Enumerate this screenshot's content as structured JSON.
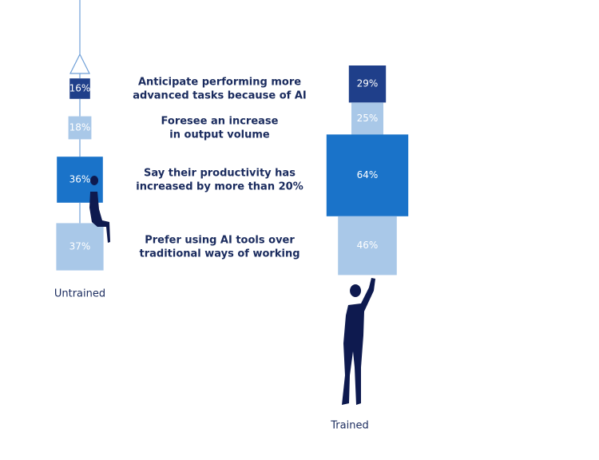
{
  "chart_data": {
    "type": "box-stack",
    "categories": [
      [
        "Anticipate performing more",
        "advanced tasks because of AI"
      ],
      [
        "Foresee an increase",
        "in output volume"
      ],
      [
        "Say their productivity has",
        "increased by more than 20%"
      ],
      [
        "Prefer using AI tools over",
        "traditional ways of working"
      ]
    ],
    "colors": [
      "#1f3f8a",
      "#a9c8e8",
      "#1a73c9",
      "#a9c8e8"
    ],
    "series": [
      {
        "name": "Untrained",
        "values": [
          16,
          18,
          36,
          37
        ],
        "value_labels": [
          "16%",
          "18%",
          "36%",
          "37%"
        ]
      },
      {
        "name": "Trained",
        "values": [
          29,
          25,
          64,
          46
        ],
        "value_labels": [
          "29%",
          "25%",
          "64%",
          "46%"
        ]
      }
    ]
  }
}
